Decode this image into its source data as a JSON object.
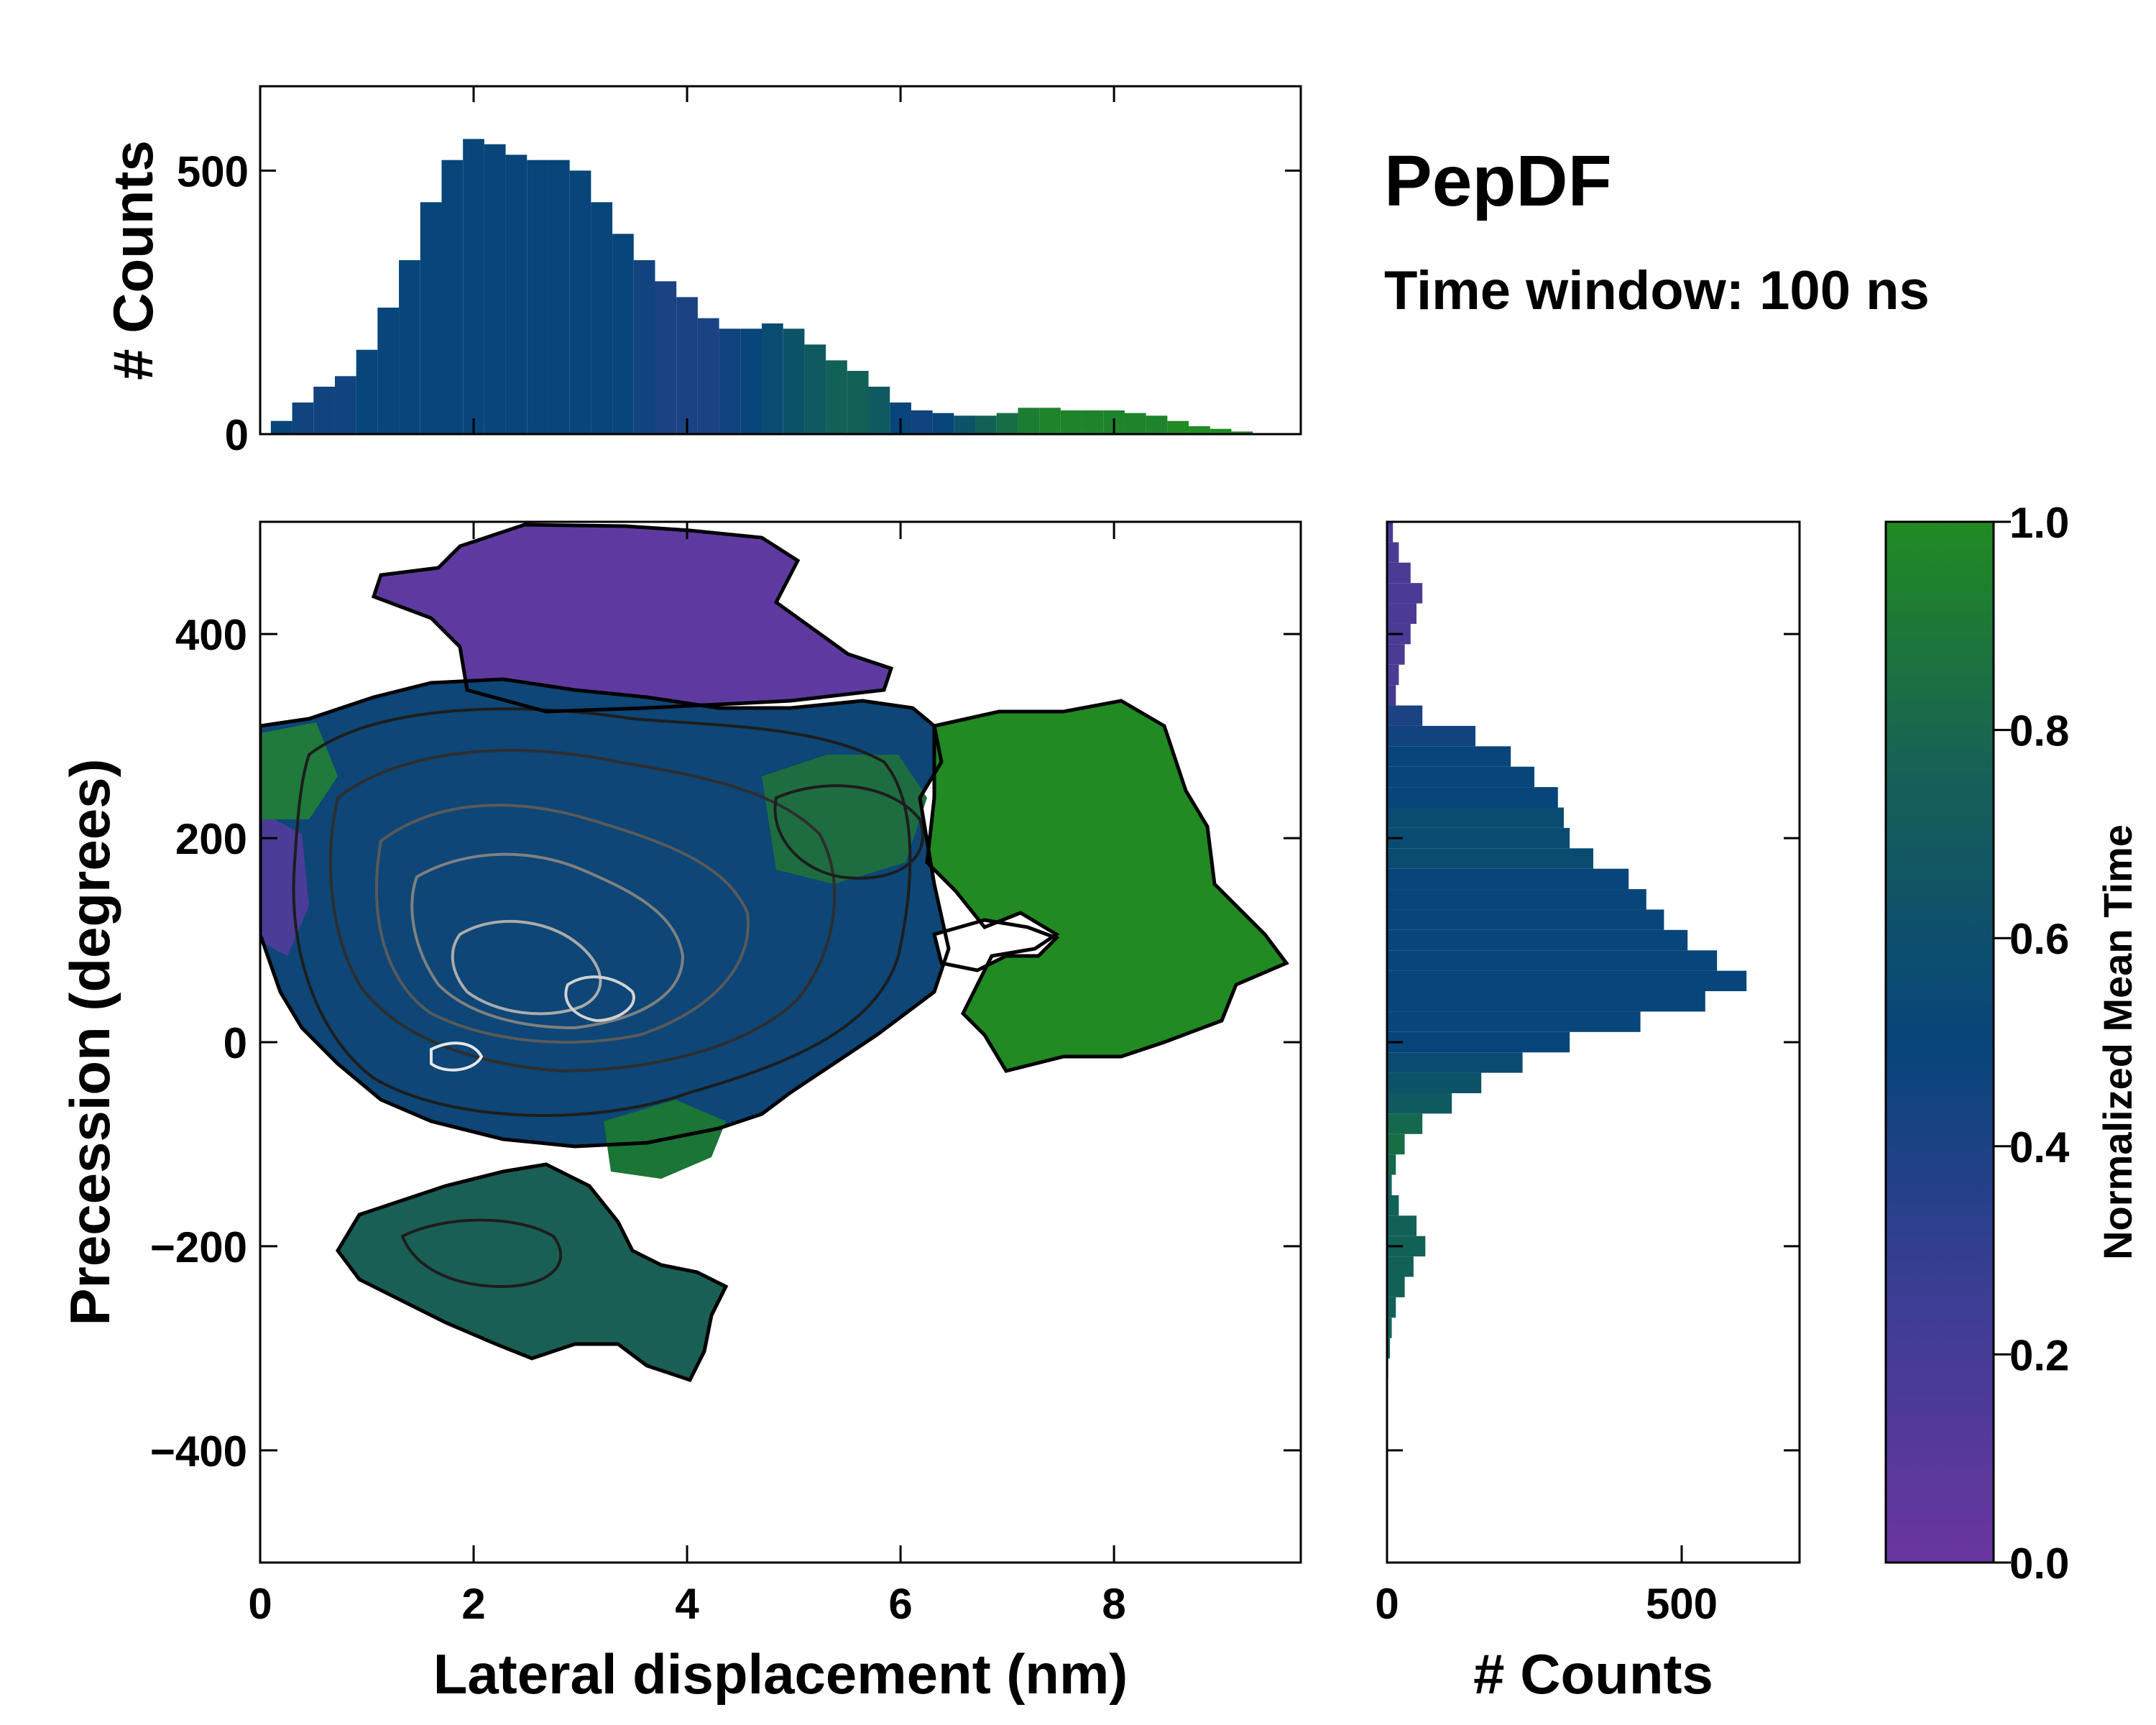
{
  "annotation": {
    "title": "PepDF",
    "subtitle": "Time window: 100 ns"
  },
  "colors": {
    "low": "#6a35a0",
    "mid": "#07457a",
    "high": "#218a22",
    "contour_outline": "#000000"
  },
  "chart_data": [
    {
      "id": "top_histogram",
      "type": "bar",
      "ylabel": "# Counts",
      "xlim": [
        0,
        9.75
      ],
      "ylim": [
        0,
        660
      ],
      "yticks": [
        0,
        500
      ],
      "x_bin_centers": [
        0.2,
        0.4,
        0.6,
        0.8,
        1.0,
        1.2,
        1.4,
        1.6,
        1.8,
        2.0,
        2.2,
        2.4,
        2.6,
        2.8,
        3.0,
        3.2,
        3.4,
        3.6,
        3.8,
        4.0,
        4.2,
        4.4,
        4.6,
        4.8,
        5.0,
        5.2,
        5.4,
        5.6,
        5.8,
        6.0,
        6.2,
        6.4,
        6.6,
        6.8,
        7.0,
        7.2,
        7.4,
        7.6,
        7.8,
        8.0,
        8.2,
        8.4,
        8.6,
        8.8,
        9.0,
        9.2,
        9.4
      ],
      "counts": [
        25,
        60,
        90,
        110,
        160,
        240,
        330,
        440,
        520,
        560,
        550,
        530,
        520,
        520,
        500,
        440,
        380,
        330,
        290,
        260,
        220,
        200,
        200,
        210,
        200,
        170,
        140,
        120,
        90,
        60,
        45,
        40,
        35,
        35,
        40,
        50,
        50,
        45,
        45,
        45,
        40,
        35,
        25,
        15,
        10,
        5,
        2
      ],
      "mean_time": [
        0.5,
        0.45,
        0.45,
        0.45,
        0.5,
        0.5,
        0.5,
        0.5,
        0.5,
        0.5,
        0.5,
        0.5,
        0.5,
        0.5,
        0.5,
        0.5,
        0.5,
        0.45,
        0.4,
        0.4,
        0.4,
        0.45,
        0.5,
        0.55,
        0.6,
        0.65,
        0.7,
        0.7,
        0.65,
        0.5,
        0.45,
        0.5,
        0.6,
        0.7,
        0.8,
        0.9,
        0.95,
        0.95,
        0.95,
        0.95,
        0.95,
        0.95,
        1.0,
        1.0,
        1.0,
        1.0,
        1.0
      ]
    },
    {
      "id": "main_heatmap",
      "type": "heatmap",
      "xlabel": "Lateral displacement (nm)",
      "ylabel": "Precession (degrees)",
      "xlim": [
        0,
        9.75
      ],
      "ylim": [
        -510,
        510
      ],
      "xticks": [
        0,
        2,
        4,
        6,
        8
      ],
      "yticks": [
        -400,
        -200,
        0,
        200,
        400
      ],
      "colorbar_label": "Normalized Mean Time",
      "region_mean_time": [
        {
          "name": "upper lobe",
          "x": [
            1.2,
            5.5
          ],
          "y": [
            280,
            500
          ],
          "mean_time": 0.15
        },
        {
          "name": "central band",
          "x": [
            0,
            7
          ],
          "y": [
            -100,
            300
          ],
          "mean_time": 0.45
        },
        {
          "name": "right lobe",
          "x": [
            6.5,
            9.75
          ],
          "y": [
            -30,
            320
          ],
          "mean_time": 0.95
        },
        {
          "name": "lower lobe",
          "x": [
            0.8,
            4.6
          ],
          "y": [
            -340,
            -100
          ],
          "mean_time": 0.7
        }
      ],
      "density_peaks": [
        {
          "x": 2.2,
          "y": 20
        },
        {
          "x": 3.2,
          "y": 50
        },
        {
          "x": 2.0,
          "y": 160
        }
      ]
    },
    {
      "id": "right_histogram",
      "type": "bar",
      "orientation": "horizontal",
      "xlabel": "# Counts",
      "xlim": [
        0,
        700
      ],
      "ylim": [
        -510,
        510
      ],
      "xticks": [
        0,
        500
      ],
      "y_bin_centers": [
        500,
        480,
        460,
        440,
        420,
        400,
        380,
        360,
        340,
        320,
        300,
        280,
        260,
        240,
        220,
        200,
        180,
        160,
        140,
        120,
        100,
        80,
        60,
        40,
        20,
        0,
        -20,
        -40,
        -60,
        -80,
        -100,
        -120,
        -140,
        -160,
        -180,
        -200,
        -220,
        -240,
        -260,
        -280,
        -300,
        -320
      ],
      "counts": [
        10,
        20,
        40,
        60,
        50,
        40,
        30,
        20,
        15,
        60,
        150,
        210,
        250,
        290,
        300,
        310,
        350,
        410,
        440,
        470,
        510,
        560,
        610,
        540,
        430,
        310,
        230,
        160,
        110,
        60,
        30,
        15,
        8,
        20,
        50,
        65,
        45,
        30,
        15,
        8,
        5,
        2
      ],
      "mean_time": [
        0.15,
        0.15,
        0.15,
        0.15,
        0.15,
        0.15,
        0.15,
        0.15,
        0.2,
        0.4,
        0.45,
        0.5,
        0.5,
        0.5,
        0.55,
        0.55,
        0.55,
        0.5,
        0.5,
        0.5,
        0.5,
        0.5,
        0.5,
        0.5,
        0.5,
        0.5,
        0.55,
        0.6,
        0.65,
        0.75,
        0.8,
        0.75,
        0.7,
        0.7,
        0.7,
        0.7,
        0.7,
        0.7,
        0.7,
        0.7,
        0.7,
        0.7
      ]
    },
    {
      "id": "colorbar",
      "type": "colorbar",
      "label": "Normalized Mean Time",
      "range": [
        0.0,
        1.0
      ],
      "ticks": [
        "0.0",
        "0.2",
        "0.4",
        "0.6",
        "0.8",
        "1.0"
      ]
    }
  ]
}
